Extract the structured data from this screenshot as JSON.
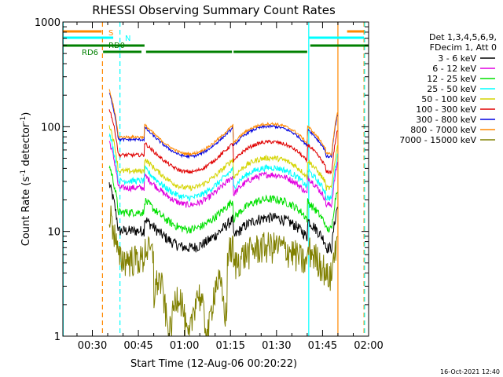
{
  "chart_data": {
    "type": "line",
    "title": "RHESSI Observing Summary Count Rates",
    "xlabel": "Start Time (12-Aug-06 00:20:22)",
    "ylabel_main": "Count Rate (s",
    "ylabel_sup1": "-1",
    "ylabel_mid": " detector",
    "ylabel_sup2": "-1",
    "ylabel_end": ")",
    "y_scale": "log",
    "ylim": [
      1,
      1000
    ],
    "xlim_minutes": [
      20.4,
      120
    ],
    "x_ticks": [
      {
        "t": 30,
        "label": "00:30"
      },
      {
        "t": 45,
        "label": "00:45"
      },
      {
        "t": 60,
        "label": "01:00"
      },
      {
        "t": 75,
        "label": "01:15"
      },
      {
        "t": 90,
        "label": "01:30"
      },
      {
        "t": 105,
        "label": "01:45"
      },
      {
        "t": 120,
        "label": "02:00"
      }
    ],
    "y_ticks": [
      {
        "v": 1,
        "label": "1"
      },
      {
        "v": 10,
        "label": "10"
      },
      {
        "v": 100,
        "label": "100"
      },
      {
        "v": 1000,
        "label": "1000"
      }
    ],
    "legend_placement": "right",
    "legend_header": [
      "Det 1,3,4,5,6,9,",
      "FDecim 1, Att 0"
    ],
    "series": [
      {
        "name": "3 - 6 keV",
        "color": "#000000",
        "level": 7.0,
        "noise": 0.12
      },
      {
        "name": "6 - 12 keV",
        "color": "#e000e0",
        "level": 18.0,
        "noise": 0.07
      },
      {
        "name": "12 - 25 keV",
        "color": "#00e000",
        "level": 10.5,
        "noise": 0.09
      },
      {
        "name": "25 - 50 keV",
        "color": "#00ffff",
        "level": 21.0,
        "noise": 0.07
      },
      {
        "name": "50 - 100 keV",
        "color": "#d4d400",
        "level": 26.0,
        "noise": 0.06
      },
      {
        "name": "100 - 300 keV",
        "color": "#e00000",
        "level": 37.0,
        "noise": 0.04
      },
      {
        "name": "300 - 800 keV",
        "color": "#0000e0",
        "level": 52.0,
        "noise": 0.03
      },
      {
        "name": "800 - 7000 keV",
        "color": "#ff8800",
        "level": 55.0,
        "noise": 0.03
      },
      {
        "name": "7000 - 15000 keV",
        "color": "#808000",
        "level": 3.8,
        "noise": 0.35
      }
    ],
    "status_bars": [
      {
        "label": "S",
        "color": "#ff8800",
        "segments": [
          [
            20.4,
            33.0
          ],
          [
            113.0,
            118.5
          ]
        ]
      },
      {
        "label": "N",
        "color": "#00ffff",
        "segments": [
          [
            20.4,
            36.8
          ],
          [
            100.5,
            118.5
          ]
        ]
      },
      {
        "label": "RD0",
        "color": "#008000",
        "segments": [
          [
            20.4,
            47.0
          ],
          [
            101.0,
            120
          ]
        ]
      },
      {
        "label": "RD6",
        "color": "#008000",
        "segments": [
          [
            33.5,
            46.0
          ],
          [
            47.5,
            75.5
          ],
          [
            76.0,
            100.0
          ]
        ]
      }
    ],
    "vertical_markers": [
      {
        "t": 20.5,
        "color": "#00ffff",
        "style": "solid"
      },
      {
        "t": 33.3,
        "color": "#ff8800",
        "style": "dashed"
      },
      {
        "t": 39.0,
        "color": "#00ffff",
        "style": "dashed"
      },
      {
        "t": 100.5,
        "color": "#00ffff",
        "style": "solid"
      },
      {
        "t": 110.0,
        "color": "#ff8800",
        "style": "solid"
      },
      {
        "t": 118.5,
        "color": "#ff8800",
        "style": "dashed"
      },
      {
        "t": 118.7,
        "color": "#00ffff",
        "style": "dashed"
      }
    ],
    "data_start_t": 35.5,
    "data_end_t": 110.0,
    "corner_date": "16-Oct-2021 12:40"
  }
}
